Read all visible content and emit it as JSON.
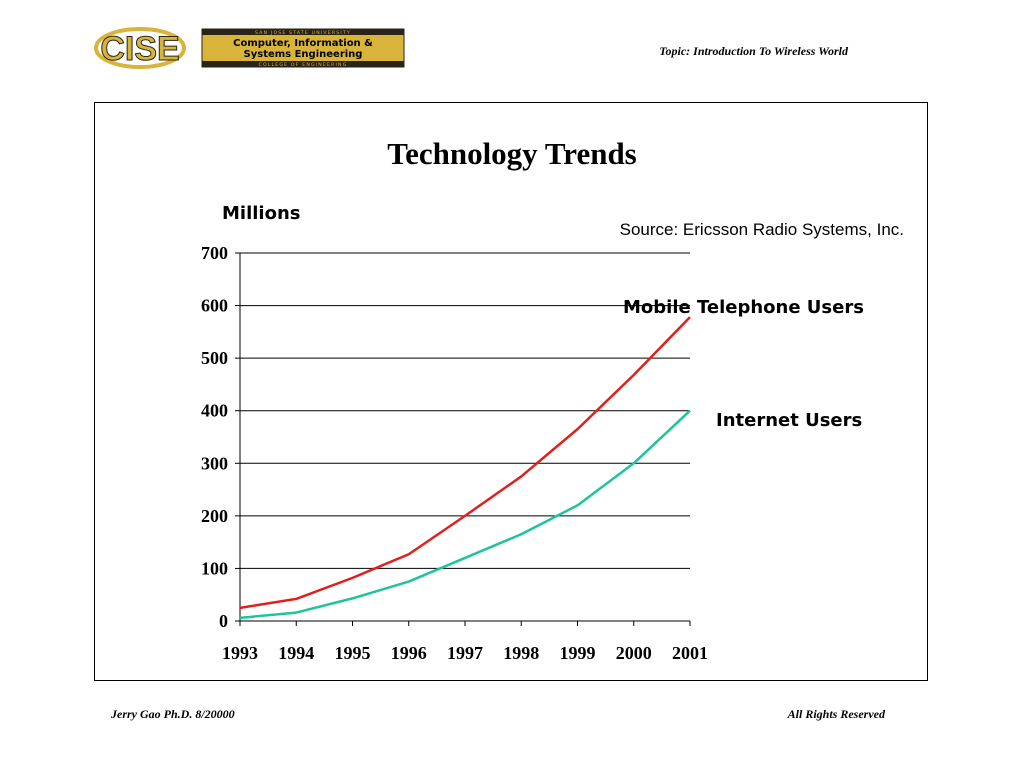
{
  "header": {
    "logo": {
      "mark_text": "CISE",
      "university": "SAN JOSE STATE UNIVERSITY",
      "dept_line1": "Computer, Information &",
      "dept_line2": "Systems Engineering",
      "college": "COLLEGE OF ENGINEERING",
      "gold": "#d8b43a",
      "dark": "#2a2418"
    },
    "topic": "Topic: Introduction To Wireless World"
  },
  "footer": {
    "left": "Jerry Gao Ph.D.  8/20000",
    "right": "All Rights Reserved"
  },
  "chart_data": {
    "type": "line",
    "title": "Technology Trends",
    "ylabel": "Millions",
    "source": "Source: Ericsson Radio Systems, Inc.",
    "xlabel": "",
    "x": [
      "1993",
      "1994",
      "1995",
      "1996",
      "1997",
      "1998",
      "1999",
      "2000",
      "2001"
    ],
    "ylim": [
      0,
      700
    ],
    "yticks": [
      0,
      100,
      200,
      300,
      400,
      500,
      600,
      700
    ],
    "grid": true,
    "series": [
      {
        "name": "Mobile Telephone Users",
        "color": "#e0201c",
        "values": [
          25,
          42,
          82,
          127,
          200,
          275,
          365,
          468,
          578
        ]
      },
      {
        "name": "Internet Users",
        "color": "#1fc49a",
        "values": [
          6,
          16,
          43,
          75,
          120,
          165,
          220,
          300,
          400
        ]
      }
    ]
  }
}
